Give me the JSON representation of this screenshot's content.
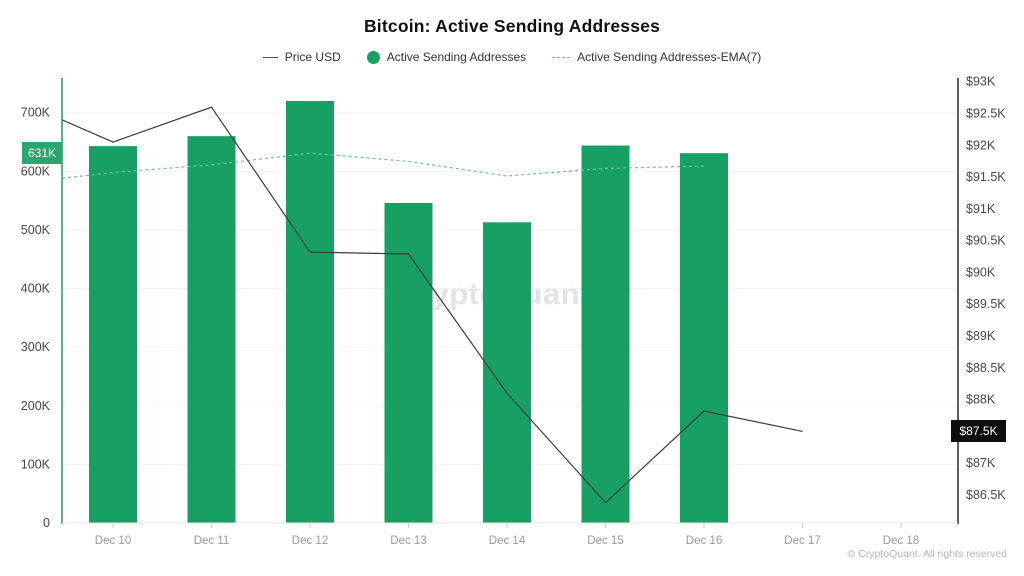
{
  "header": {
    "title": "Bitcoin: Active Sending Addresses"
  },
  "legend": {
    "items": [
      {
        "label": "Price USD",
        "marker": "line",
        "color": "#4d4d4d"
      },
      {
        "label": "Active Sending Addresses",
        "marker": "dot",
        "color": "#18a064"
      },
      {
        "label": "Active Sending Addresses-EMA(7)",
        "marker": "dashed-line",
        "color": "#6fc0a0"
      }
    ]
  },
  "watermark": "CryptoQuant",
  "footer": "© CryptoQuant. All rights reserved",
  "chart_data": {
    "type": "bar+line",
    "title": "Bitcoin: Active Sending Addresses",
    "categories": [
      "Dec 10",
      "Dec 11",
      "Dec 12",
      "Dec 13",
      "Dec 14",
      "Dec 15",
      "Dec 16",
      "Dec 17",
      "Dec 18"
    ],
    "series": [
      {
        "name": "Active Sending Addresses",
        "type": "bar",
        "axis": "left",
        "color": "#18a064",
        "values": [
          643000,
          660000,
          720000,
          546000,
          513000,
          644000,
          631000,
          null,
          null
        ]
      },
      {
        "name": "Price USD",
        "type": "line",
        "axis": "right",
        "color": "#3d3d3d",
        "edge_value": 92400,
        "values": [
          92050,
          92600,
          90320,
          90290,
          88100,
          86380,
          87820,
          87500,
          null
        ]
      },
      {
        "name": "Active Sending Addresses-EMA(7)",
        "type": "line-dashed",
        "axis": "left",
        "color": "#6fc0a0",
        "edge_value": 588000,
        "values": [
          598000,
          611000,
          631000,
          617000,
          592000,
          605000,
          609000,
          null,
          null
        ]
      }
    ],
    "left_axis": {
      "min": 0,
      "max": 700000,
      "axis_color": "#18a064",
      "ticks": [
        {
          "label": "0",
          "value": 0
        },
        {
          "label": "100K",
          "value": 100000
        },
        {
          "label": "200K",
          "value": 200000
        },
        {
          "label": "300K",
          "value": 300000
        },
        {
          "label": "400K",
          "value": 400000
        },
        {
          "label": "500K",
          "value": 500000
        },
        {
          "label": "600K",
          "value": 600000
        },
        {
          "label": "700K",
          "value": 700000
        }
      ]
    },
    "right_axis": {
      "min": 86500,
      "max": 93000,
      "axis_color": "#2a2a2a",
      "ticks": [
        {
          "label": "$86.5K",
          "value": 86500
        },
        {
          "label": "$87K",
          "value": 87000
        },
        {
          "label": "$87.5K",
          "value": 87500
        },
        {
          "label": "$88K",
          "value": 88000
        },
        {
          "label": "$88.5K",
          "value": 88500
        },
        {
          "label": "$89K",
          "value": 89000
        },
        {
          "label": "$89.5K",
          "value": 89500
        },
        {
          "label": "$90K",
          "value": 90000
        },
        {
          "label": "$90.5K",
          "value": 90500
        },
        {
          "label": "$91K",
          "value": 91000
        },
        {
          "label": "$91.5K",
          "value": 91500
        },
        {
          "label": "$92K",
          "value": 92000
        },
        {
          "label": "$92.5K",
          "value": 92500
        },
        {
          "label": "$93K",
          "value": 93000
        }
      ]
    },
    "badges": {
      "left": {
        "label": "631K",
        "value": 631000
      },
      "right": {
        "label": "$87.5K",
        "value": 87500
      }
    },
    "grid": "horizontal-only",
    "legend_position": "top"
  }
}
